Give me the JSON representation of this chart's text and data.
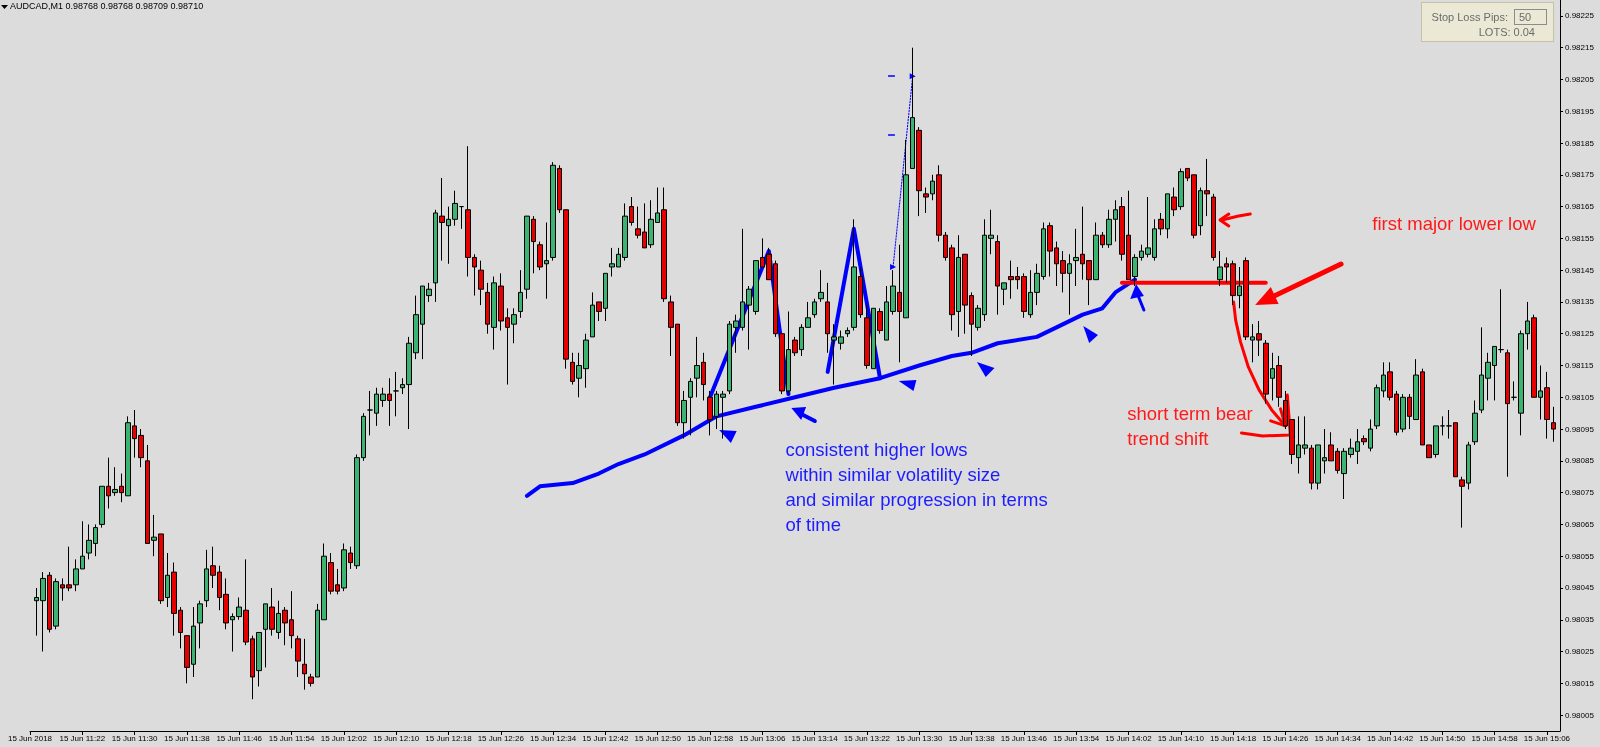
{
  "chart_data": {
    "type": "candlestick",
    "title": "AUDCAD,M1 0.98768 0.98768 0.98709 0.98710",
    "x": [
      "2018-06-15T11:15",
      "2018-06-15T11:16",
      "2018-06-15T11:17",
      "2018-06-15T11:18",
      "2018-06-15T11:19",
      "2018-06-15T11:20",
      "2018-06-15T11:21",
      "2018-06-15T11:22",
      "2018-06-15T11:23",
      "2018-06-15T11:24",
      "2018-06-15T11:25",
      "2018-06-15T11:26",
      "2018-06-15T11:27",
      "2018-06-15T11:28",
      "2018-06-15T11:29",
      "2018-06-15T11:30",
      "2018-06-15T11:31",
      "2018-06-15T11:32",
      "2018-06-15T11:33",
      "2018-06-15T11:34",
      "2018-06-15T11:35",
      "2018-06-15T11:36",
      "2018-06-15T11:37",
      "2018-06-15T11:38",
      "2018-06-15T11:39",
      "2018-06-15T11:40",
      "2018-06-15T11:41",
      "2018-06-15T11:42",
      "2018-06-15T11:43",
      "2018-06-15T11:44",
      "2018-06-15T11:45",
      "2018-06-15T11:46",
      "2018-06-15T11:47",
      "2018-06-15T11:48",
      "2018-06-15T11:49",
      "2018-06-15T11:50",
      "2018-06-15T11:51",
      "2018-06-15T11:52",
      "2018-06-15T11:53",
      "2018-06-15T11:54",
      "2018-06-15T11:55",
      "2018-06-15T11:56",
      "2018-06-15T11:57",
      "2018-06-15T11:58",
      "2018-06-15T11:59",
      "2018-06-15T12:00",
      "2018-06-15T12:01",
      "2018-06-15T12:02",
      "2018-06-15T12:03",
      "2018-06-15T12:04",
      "2018-06-15T12:05",
      "2018-06-15T12:06",
      "2018-06-15T12:07",
      "2018-06-15T12:08",
      "2018-06-15T12:09",
      "2018-06-15T12:10",
      "2018-06-15T12:11",
      "2018-06-15T12:12",
      "2018-06-15T12:13",
      "2018-06-15T12:14",
      "2018-06-15T12:15",
      "2018-06-15T12:16",
      "2018-06-15T12:17",
      "2018-06-15T12:18",
      "2018-06-15T12:19",
      "2018-06-15T12:20",
      "2018-06-15T12:21",
      "2018-06-15T12:22",
      "2018-06-15T12:23",
      "2018-06-15T12:24",
      "2018-06-15T12:25",
      "2018-06-15T12:26",
      "2018-06-15T12:27",
      "2018-06-15T12:28",
      "2018-06-15T12:29",
      "2018-06-15T12:30",
      "2018-06-15T12:31",
      "2018-06-15T12:32",
      "2018-06-15T12:33",
      "2018-06-15T12:34",
      "2018-06-15T12:35",
      "2018-06-15T12:36",
      "2018-06-15T12:37",
      "2018-06-15T12:38",
      "2018-06-15T12:39",
      "2018-06-15T12:40",
      "2018-06-15T12:41",
      "2018-06-15T12:42",
      "2018-06-15T12:43",
      "2018-06-15T12:44",
      "2018-06-15T12:45",
      "2018-06-15T12:46",
      "2018-06-15T12:47",
      "2018-06-15T12:48",
      "2018-06-15T12:49",
      "2018-06-15T12:50",
      "2018-06-15T12:51",
      "2018-06-15T12:52",
      "2018-06-15T12:53",
      "2018-06-15T12:54",
      "2018-06-15T12:55",
      "2018-06-15T12:56",
      "2018-06-15T12:57",
      "2018-06-15T12:58",
      "2018-06-15T12:59",
      "2018-06-15T13:00",
      "2018-06-15T13:01",
      "2018-06-15T13:02",
      "2018-06-15T13:03",
      "2018-06-15T13:04",
      "2018-06-15T13:05",
      "2018-06-15T13:06",
      "2018-06-15T13:07",
      "2018-06-15T13:08",
      "2018-06-15T13:09",
      "2018-06-15T13:10",
      "2018-06-15T13:11",
      "2018-06-15T13:12",
      "2018-06-15T13:13",
      "2018-06-15T13:14",
      "2018-06-15T13:15",
      "2018-06-15T13:16",
      "2018-06-15T13:17",
      "2018-06-15T13:18",
      "2018-06-15T13:19",
      "2018-06-15T13:20",
      "2018-06-15T13:21",
      "2018-06-15T13:22",
      "2018-06-15T13:23",
      "2018-06-15T13:24",
      "2018-06-15T13:25",
      "2018-06-15T13:26",
      "2018-06-15T13:27",
      "2018-06-15T13:28",
      "2018-06-15T13:29",
      "2018-06-15T13:30",
      "2018-06-15T13:31",
      "2018-06-15T13:32",
      "2018-06-15T13:33",
      "2018-06-15T13:34",
      "2018-06-15T13:35",
      "2018-06-15T13:36",
      "2018-06-15T13:37",
      "2018-06-15T13:38",
      "2018-06-15T13:39",
      "2018-06-15T13:40",
      "2018-06-15T13:41",
      "2018-06-15T13:42",
      "2018-06-15T13:43",
      "2018-06-15T13:44",
      "2018-06-15T13:45",
      "2018-06-15T13:46",
      "2018-06-15T13:47",
      "2018-06-15T13:48",
      "2018-06-15T13:49",
      "2018-06-15T13:50",
      "2018-06-15T13:51",
      "2018-06-15T13:52",
      "2018-06-15T13:53",
      "2018-06-15T13:54",
      "2018-06-15T13:55",
      "2018-06-15T13:56",
      "2018-06-15T13:57",
      "2018-06-15T13:58",
      "2018-06-15T13:59",
      "2018-06-15T14:00",
      "2018-06-15T14:01",
      "2018-06-15T14:02",
      "2018-06-15T14:03",
      "2018-06-15T14:04",
      "2018-06-15T14:05",
      "2018-06-15T14:06",
      "2018-06-15T14:07",
      "2018-06-15T14:08",
      "2018-06-15T14:09",
      "2018-06-15T14:10",
      "2018-06-15T14:11",
      "2018-06-15T14:12",
      "2018-06-15T14:13",
      "2018-06-15T14:14",
      "2018-06-15T14:15",
      "2018-06-15T14:16",
      "2018-06-15T14:17",
      "2018-06-15T14:18",
      "2018-06-15T14:19",
      "2018-06-15T14:20",
      "2018-06-15T14:21",
      "2018-06-15T14:22",
      "2018-06-15T14:23",
      "2018-06-15T14:24",
      "2018-06-15T14:25",
      "2018-06-15T14:26",
      "2018-06-15T14:27",
      "2018-06-15T14:28",
      "2018-06-15T14:29",
      "2018-06-15T14:30",
      "2018-06-15T14:31",
      "2018-06-15T14:32",
      "2018-06-15T14:33",
      "2018-06-15T14:34",
      "2018-06-15T14:35",
      "2018-06-15T14:36",
      "2018-06-15T14:37",
      "2018-06-15T14:38",
      "2018-06-15T14:39",
      "2018-06-15T14:40",
      "2018-06-15T14:41",
      "2018-06-15T14:42",
      "2018-06-15T14:43",
      "2018-06-15T14:44",
      "2018-06-15T14:45",
      "2018-06-15T14:46",
      "2018-06-15T14:47",
      "2018-06-15T14:48",
      "2018-06-15T14:49",
      "2018-06-15T14:50",
      "2018-06-15T14:51",
      "2018-06-15T14:52",
      "2018-06-15T14:53",
      "2018-06-15T14:54",
      "2018-06-15T14:55",
      "2018-06-15T14:56",
      "2018-06-15T14:57",
      "2018-06-15T14:58",
      "2018-06-15T14:59",
      "2018-06-15T15:00",
      "2018-06-15T15:01",
      "2018-06-15T15:02",
      "2018-06-15T15:03",
      "2018-06-15T15:04",
      "2018-06-15T15:05",
      "2018-06-15T15:06",
      "2018-06-15T15:07"
    ],
    "ohlc": [
      [
        0.98041,
        0.98045,
        0.9803,
        0.98042
      ],
      [
        0.98041,
        0.9805,
        0.98025,
        0.98048
      ],
      [
        0.98049,
        0.9805,
        0.98031,
        0.98032
      ],
      [
        0.98033,
        0.98048,
        0.98032,
        0.98047
      ],
      [
        0.98046,
        0.98048,
        0.98041,
        0.98045
      ],
      [
        0.98046,
        0.98058,
        0.98044,
        0.98045
      ],
      [
        0.98046,
        0.98054,
        0.98044,
        0.98051
      ],
      [
        0.98051,
        0.98066,
        0.98051,
        0.98055
      ],
      [
        0.98056,
        0.98065,
        0.98054,
        0.9806
      ],
      [
        0.98059,
        0.98065,
        0.98055,
        0.98064
      ],
      [
        0.98065,
        0.98077,
        0.98064,
        0.98077
      ],
      [
        0.98077,
        0.98086,
        0.9807,
        0.98074
      ],
      [
        0.98075,
        0.98083,
        0.98074,
        0.98076
      ],
      [
        0.98077,
        0.98081,
        0.98072,
        0.98075
      ],
      [
        0.98074,
        0.98099,
        0.98074,
        0.98097
      ],
      [
        0.98096,
        0.98101,
        0.98086,
        0.98092
      ],
      [
        0.98093,
        0.98095,
        0.98083,
        0.98086
      ],
      [
        0.98085,
        0.9809,
        0.98059,
        0.98059
      ],
      [
        0.9806,
        0.98068,
        0.98055,
        0.98061
      ],
      [
        0.98062,
        0.98062,
        0.9804,
        0.98041
      ],
      [
        0.98042,
        0.98056,
        0.98039,
        0.98049
      ],
      [
        0.9805,
        0.98053,
        0.9803,
        0.98037
      ],
      [
        0.98038,
        0.98039,
        0.98026,
        0.98031
      ],
      [
        0.9803,
        0.9803,
        0.98015,
        0.9802
      ],
      [
        0.98021,
        0.98039,
        0.98017,
        0.98033
      ],
      [
        0.98034,
        0.98041,
        0.98026,
        0.9804
      ],
      [
        0.98041,
        0.98057,
        0.98039,
        0.98051
      ],
      [
        0.98052,
        0.98058,
        0.98045,
        0.98049
      ],
      [
        0.9805,
        0.98052,
        0.98038,
        0.98042
      ],
      [
        0.98043,
        0.98048,
        0.98032,
        0.98034
      ],
      [
        0.98035,
        0.98037,
        0.98025,
        0.98036
      ],
      [
        0.98036,
        0.98042,
        0.98035,
        0.98039
      ],
      [
        0.98038,
        0.98054,
        0.98027,
        0.98028
      ],
      [
        0.98029,
        0.9803,
        0.9801,
        0.98017
      ],
      [
        0.98019,
        0.98031,
        0.98014,
        0.98031
      ],
      [
        0.98032,
        0.9804,
        0.9802,
        0.9804
      ],
      [
        0.98039,
        0.98045,
        0.9803,
        0.98032
      ],
      [
        0.98031,
        0.98041,
        0.98029,
        0.98037
      ],
      [
        0.98038,
        0.98039,
        0.98027,
        0.98034
      ],
      [
        0.98035,
        0.98044,
        0.98026,
        0.9803
      ],
      [
        0.98029,
        0.9803,
        0.98017,
        0.98022
      ],
      [
        0.98021,
        0.98029,
        0.98013,
        0.98018
      ],
      [
        0.98017,
        0.98018,
        0.98014,
        0.98015
      ],
      [
        0.98017,
        0.9804,
        0.98017,
        0.98038
      ],
      [
        0.98035,
        0.98059,
        0.98035,
        0.98055
      ],
      [
        0.98053,
        0.98056,
        0.98043,
        0.98044
      ],
      [
        0.98046,
        0.98051,
        0.98043,
        0.98044
      ],
      [
        0.98045,
        0.98059,
        0.98044,
        0.98057
      ],
      [
        0.98056,
        0.98058,
        0.98051,
        0.98053
      ],
      [
        0.98052,
        0.98087,
        0.98051,
        0.98086
      ],
      [
        0.98086,
        0.981,
        0.98085,
        0.98099
      ],
      [
        0.98101,
        0.98107,
        0.98093,
        0.98101
      ],
      [
        0.981,
        0.98108,
        0.98096,
        0.98106
      ],
      [
        0.98104,
        0.98108,
        0.98102,
        0.98106
      ],
      [
        0.98106,
        0.98111,
        0.98096,
        0.98104
      ],
      [
        0.98107,
        0.98113,
        0.98099,
        0.98107
      ],
      [
        0.98108,
        0.98111,
        0.98106,
        0.98109
      ],
      [
        0.98109,
        0.98124,
        0.98095,
        0.98122
      ],
      [
        0.98119,
        0.98137,
        0.98117,
        0.98131
      ],
      [
        0.98128,
        0.9814,
        0.98117,
        0.9814
      ],
      [
        0.98137,
        0.98141,
        0.98135,
        0.98139
      ],
      [
        0.98141,
        0.98164,
        0.98135,
        0.98163
      ],
      [
        0.98162,
        0.98174,
        0.98148,
        0.9816
      ],
      [
        0.98159,
        0.98165,
        0.98147,
        0.98161
      ],
      [
        0.98161,
        0.9817,
        0.98159,
        0.98166
      ],
      [
        0.98165,
        0.98165,
        0.98158,
        0.98165
      ],
      [
        0.98164,
        0.98184,
        0.98143,
        0.98149
      ],
      [
        0.98149,
        0.9815,
        0.98137,
        0.98146
      ],
      [
        0.98145,
        0.98148,
        0.98134,
        0.98139
      ],
      [
        0.98138,
        0.98141,
        0.98125,
        0.98128
      ],
      [
        0.98127,
        0.98143,
        0.9812,
        0.98141
      ],
      [
        0.9814,
        0.98144,
        0.98126,
        0.98129
      ],
      [
        0.9813,
        0.98133,
        0.98109,
        0.98127
      ],
      [
        0.98128,
        0.98133,
        0.98122,
        0.98131
      ],
      [
        0.98132,
        0.98145,
        0.9813,
        0.98138
      ],
      [
        0.98139,
        0.98162,
        0.98136,
        0.98162
      ],
      [
        0.98161,
        0.98162,
        0.98144,
        0.98154
      ],
      [
        0.98153,
        0.98154,
        0.98145,
        0.98146
      ],
      [
        0.98147,
        0.9816,
        0.98136,
        0.98148
      ],
      [
        0.98149,
        0.98179,
        0.98148,
        0.98178
      ],
      [
        0.98177,
        0.98178,
        0.98163,
        0.98164
      ],
      [
        0.98164,
        0.98164,
        0.98114,
        0.98117
      ],
      [
        0.98116,
        0.98119,
        0.98109,
        0.9811
      ],
      [
        0.98111,
        0.98119,
        0.98105,
        0.98115
      ],
      [
        0.98114,
        0.98125,
        0.98108,
        0.98123
      ],
      [
        0.98124,
        0.98138,
        0.98124,
        0.98134
      ],
      [
        0.98135,
        0.98135,
        0.98129,
        0.98132
      ],
      [
        0.98133,
        0.98144,
        0.98129,
        0.98144
      ],
      [
        0.98146,
        0.98152,
        0.98143,
        0.98147
      ],
      [
        0.98146,
        0.98152,
        0.98146,
        0.9815
      ],
      [
        0.98149,
        0.98166,
        0.98148,
        0.98162
      ],
      [
        0.98165,
        0.98168,
        0.98159,
        0.9816
      ],
      [
        0.98158,
        0.98165,
        0.98155,
        0.98156
      ],
      [
        0.98157,
        0.98166,
        0.98152,
        0.98152
      ],
      [
        0.98153,
        0.98167,
        0.98152,
        0.98161
      ],
      [
        0.9816,
        0.98171,
        0.9816,
        0.98163
      ],
      [
        0.98164,
        0.98171,
        0.98135,
        0.98136
      ],
      [
        0.98135,
        0.98137,
        0.98118,
        0.98127
      ],
      [
        0.98128,
        0.98128,
        0.98096,
        0.98097
      ],
      [
        0.98097,
        0.98107,
        0.98092,
        0.98104
      ],
      [
        0.98105,
        0.98111,
        0.98093,
        0.9811
      ],
      [
        0.98111,
        0.98124,
        0.98105,
        0.98115
      ],
      [
        0.98116,
        0.98119,
        0.98104,
        0.98109
      ],
      [
        0.98105,
        0.98107,
        0.98093,
        0.98098
      ],
      [
        0.98099,
        0.98107,
        0.98095,
        0.98106
      ],
      [
        0.98105,
        0.98107,
        0.98092,
        0.98106
      ],
      [
        0.98107,
        0.98129,
        0.98106,
        0.98128
      ],
      [
        0.98127,
        0.98131,
        0.98119,
        0.98129
      ],
      [
        0.98127,
        0.98158,
        0.98126,
        0.98135
      ],
      [
        0.98134,
        0.9814,
        0.9812,
        0.98139
      ],
      [
        0.98132,
        0.98148,
        0.98131,
        0.98148
      ],
      [
        0.98149,
        0.98155,
        0.98146,
        0.98146
      ],
      [
        0.9815,
        0.98152,
        0.98142,
        0.98142
      ],
      [
        0.98147,
        0.98148,
        0.98124,
        0.98125
      ],
      [
        0.98125,
        0.98125,
        0.98106,
        0.98107
      ],
      [
        0.98107,
        0.98132,
        0.98106,
        0.9812
      ],
      [
        0.98123,
        0.98124,
        0.98118,
        0.98119
      ],
      [
        0.9812,
        0.98128,
        0.98118,
        0.98127
      ],
      [
        0.98127,
        0.98135,
        0.98127,
        0.9813
      ],
      [
        0.98131,
        0.98136,
        0.9813,
        0.98135
      ],
      [
        0.98136,
        0.98145,
        0.98135,
        0.98138
      ],
      [
        0.98135,
        0.98141,
        0.98119,
        0.98125
      ],
      [
        0.98123,
        0.98128,
        0.98109,
        0.98124
      ],
      [
        0.98122,
        0.98126,
        0.9812,
        0.98124
      ],
      [
        0.98125,
        0.98127,
        0.98124,
        0.98126
      ],
      [
        0.98127,
        0.98161,
        0.98126,
        0.98146
      ],
      [
        0.98143,
        0.98146,
        0.9813,
        0.98131
      ],
      [
        0.9813,
        0.98134,
        0.98114,
        0.98115
      ],
      [
        0.98114,
        0.98133,
        0.98114,
        0.98133
      ],
      [
        0.98132,
        0.98133,
        0.98125,
        0.98126
      ],
      [
        0.98123,
        0.9814,
        0.98123,
        0.98135
      ],
      [
        0.98132,
        0.98145,
        0.98131,
        0.9814
      ],
      [
        0.98138,
        0.98153,
        0.98116,
        0.98132
      ],
      [
        0.9813,
        0.98186,
        0.9813,
        0.98175
      ],
      [
        0.98177,
        0.98215,
        0.98177,
        0.98193
      ],
      [
        0.98189,
        0.9819,
        0.98162,
        0.9817
      ],
      [
        0.98169,
        0.98171,
        0.98163,
        0.98168
      ],
      [
        0.98169,
        0.98175,
        0.98167,
        0.98173
      ],
      [
        0.98175,
        0.98178,
        0.98154,
        0.98156
      ],
      [
        0.98156,
        0.98157,
        0.98148,
        0.98149
      ],
      [
        0.98152,
        0.98153,
        0.98126,
        0.98131
      ],
      [
        0.98132,
        0.98156,
        0.98124,
        0.98149
      ],
      [
        0.9815,
        0.9815,
        0.98125,
        0.98134
      ],
      [
        0.98137,
        0.98138,
        0.98118,
        0.98128
      ],
      [
        0.98127,
        0.98134,
        0.98126,
        0.98133
      ],
      [
        0.98131,
        0.98161,
        0.98129,
        0.98156
      ],
      [
        0.98155,
        0.98164,
        0.9815,
        0.98156
      ],
      [
        0.98154,
        0.98156,
        0.98131,
        0.9814
      ],
      [
        0.98139,
        0.98141,
        0.98134,
        0.98141
      ],
      [
        0.98143,
        0.98148,
        0.98136,
        0.98142
      ],
      [
        0.98143,
        0.98146,
        0.98139,
        0.98142
      ],
      [
        0.98143,
        0.98144,
        0.9813,
        0.98132
      ],
      [
        0.98131,
        0.98145,
        0.9813,
        0.98138
      ],
      [
        0.98138,
        0.98147,
        0.98134,
        0.98144
      ],
      [
        0.98143,
        0.9816,
        0.98142,
        0.98158
      ],
      [
        0.98159,
        0.9816,
        0.98143,
        0.98151
      ],
      [
        0.98152,
        0.98154,
        0.9814,
        0.98147
      ],
      [
        0.98148,
        0.98151,
        0.98138,
        0.98144
      ],
      [
        0.98144,
        0.9815,
        0.98131,
        0.98147
      ],
      [
        0.98148,
        0.98158,
        0.9814,
        0.98149
      ],
      [
        0.9815,
        0.98165,
        0.98142,
        0.98147
      ],
      [
        0.98148,
        0.98148,
        0.98134,
        0.98142
      ],
      [
        0.98142,
        0.9816,
        0.98142,
        0.98156
      ],
      [
        0.98156,
        0.98157,
        0.98152,
        0.98153
      ],
      [
        0.98153,
        0.98164,
        0.98152,
        0.98161
      ],
      [
        0.98161,
        0.98167,
        0.98154,
        0.98164
      ],
      [
        0.98165,
        0.98168,
        0.98148,
        0.9815
      ],
      [
        0.98156,
        0.9817,
        0.98142,
        0.98142
      ],
      [
        0.98143,
        0.9815,
        0.9814,
        0.98149
      ],
      [
        0.98149,
        0.98153,
        0.98148,
        0.98151
      ],
      [
        0.9815,
        0.98168,
        0.98149,
        0.98152
      ],
      [
        0.98149,
        0.98161,
        0.98148,
        0.98158
      ],
      [
        0.98161,
        0.98163,
        0.98156,
        0.98158
      ],
      [
        0.98158,
        0.98169,
        0.98155,
        0.98169
      ],
      [
        0.98168,
        0.98171,
        0.98162,
        0.98164
      ],
      [
        0.98165,
        0.98177,
        0.98164,
        0.98176
      ],
      [
        0.98177,
        0.98177,
        0.98173,
        0.98174
      ],
      [
        0.98175,
        0.98175,
        0.98155,
        0.98156
      ],
      [
        0.98159,
        0.98171,
        0.98156,
        0.9817
      ],
      [
        0.9817,
        0.9818,
        0.98162,
        0.98169
      ],
      [
        0.98168,
        0.98169,
        0.98148,
        0.98149
      ],
      [
        0.98142,
        0.98151,
        0.9814,
        0.98146
      ],
      [
        0.98147,
        0.98149,
        0.98141,
        0.98146
      ],
      [
        0.98147,
        0.98148,
        0.98134,
        0.98137
      ],
      [
        0.98137,
        0.98146,
        0.98133,
        0.9814
      ],
      [
        0.98148,
        0.98149,
        0.98123,
        0.98124
      ],
      [
        0.98123,
        0.98128,
        0.98116,
        0.98124
      ],
      [
        0.98125,
        0.98129,
        0.98118,
        0.98123
      ],
      [
        0.98122,
        0.98123,
        0.98103,
        0.98106
      ],
      [
        0.98111,
        0.98119,
        0.98104,
        0.98114
      ],
      [
        0.98115,
        0.98118,
        0.98102,
        0.98105
      ],
      [
        0.98104,
        0.98107,
        0.98095,
        0.98096
      ],
      [
        0.98098,
        0.98098,
        0.98084,
        0.98087
      ],
      [
        0.98086,
        0.98099,
        0.98081,
        0.9809
      ],
      [
        0.98089,
        0.98099,
        0.98087,
        0.9809
      ],
      [
        0.98089,
        0.9809,
        0.98076,
        0.98078
      ],
      [
        0.98078,
        0.9809,
        0.98076,
        0.9809
      ],
      [
        0.98085,
        0.98095,
        0.98081,
        0.98086
      ],
      [
        0.9809,
        0.98094,
        0.98085,
        0.98085
      ],
      [
        0.98088,
        0.98089,
        0.98081,
        0.98082
      ],
      [
        0.98081,
        0.98089,
        0.98073,
        0.98088
      ],
      [
        0.98087,
        0.98092,
        0.98086,
        0.98089
      ],
      [
        0.98088,
        0.98095,
        0.98084,
        0.98091
      ],
      [
        0.98092,
        0.98093,
        0.9809,
        0.98091
      ],
      [
        0.98089,
        0.98098,
        0.98088,
        0.98095
      ],
      [
        0.98096,
        0.98109,
        0.98095,
        0.98108
      ],
      [
        0.98107,
        0.98116,
        0.98105,
        0.98112
      ],
      [
        0.98113,
        0.98116,
        0.98104,
        0.98105
      ],
      [
        0.98106,
        0.98107,
        0.98093,
        0.98094
      ],
      [
        0.98095,
        0.98106,
        0.98094,
        0.98105
      ],
      [
        0.98105,
        0.98106,
        0.98095,
        0.98099
      ],
      [
        0.98098,
        0.98117,
        0.98098,
        0.98112
      ],
      [
        0.98113,
        0.98114,
        0.9809,
        0.9809
      ],
      [
        0.9809,
        0.9809,
        0.98086,
        0.98086
      ],
      [
        0.98087,
        0.98096,
        0.98086,
        0.98096
      ],
      [
        0.98096,
        0.98099,
        0.98093,
        0.98096
      ],
      [
        0.98096,
        0.98101,
        0.98092,
        0.98096
      ],
      [
        0.98097,
        0.98097,
        0.9808,
        0.9808
      ],
      [
        0.98079,
        0.9808,
        0.98064,
        0.98077
      ],
      [
        0.98078,
        0.98091,
        0.98076,
        0.9809
      ],
      [
        0.98091,
        0.98104,
        0.9809,
        0.981
      ],
      [
        0.98101,
        0.98127,
        0.981,
        0.98112
      ],
      [
        0.98111,
        0.98119,
        0.98104,
        0.98116
      ],
      [
        0.98115,
        0.98121,
        0.98104,
        0.98121
      ],
      [
        0.9812,
        0.98139,
        0.98119,
        0.9812
      ],
      [
        0.98119,
        0.9812,
        0.9808,
        0.98103
      ],
      [
        0.98105,
        0.9811,
        0.98104,
        0.98105
      ],
      [
        0.981,
        0.98126,
        0.98093,
        0.98125
      ],
      [
        0.98125,
        0.98135,
        0.9812,
        0.98129
      ],
      [
        0.9813,
        0.98131,
        0.98105,
        0.98105
      ],
      [
        0.98105,
        0.98115,
        0.98098,
        0.98107
      ],
      [
        0.98108,
        0.98113,
        0.98092,
        0.98098
      ],
      [
        0.98097,
        0.98102,
        0.98091,
        0.98095
      ]
    ],
    "colors": [
      "#3cb371",
      "#3cb371",
      "#e60000",
      "#3cb371",
      "#e60000",
      "#e60000",
      "#3cb371",
      "#3cb371",
      "#3cb371",
      "#3cb371",
      "#3cb371",
      "#e60000",
      "#3cb371",
      "#e60000",
      "#3cb371",
      "#e60000",
      "#e60000",
      "#e60000",
      "#3cb371",
      "#e60000",
      "#3cb371",
      "#e60000",
      "#e60000",
      "#e60000",
      "#3cb371",
      "#3cb371",
      "#3cb371",
      "#e60000",
      "#e60000",
      "#e60000",
      "#3cb371",
      "#3cb371",
      "#e60000",
      "#e60000",
      "#3cb371",
      "#3cb371",
      "#e60000",
      "#3cb371",
      "#e60000",
      "#e60000",
      "#e60000",
      "#e60000",
      "#e60000",
      "#3cb371",
      "#3cb371",
      "#e60000",
      "#e60000",
      "#3cb371",
      "#e60000",
      "#3cb371",
      "#3cb371",
      "#000000",
      "#3cb371",
      "#3cb371",
      "#e60000",
      "#000000",
      "#3cb371",
      "#3cb371",
      "#3cb371",
      "#3cb371",
      "#3cb371",
      "#3cb371",
      "#e60000",
      "#3cb371",
      "#3cb371",
      "#000000",
      "#e60000",
      "#e60000",
      "#e60000",
      "#e60000",
      "#3cb371",
      "#e60000",
      "#e60000",
      "#3cb371",
      "#3cb371",
      "#3cb371",
      "#e60000",
      "#e60000",
      "#3cb371",
      "#3cb371",
      "#e60000",
      "#e60000",
      "#e60000",
      "#3cb371",
      "#3cb371",
      "#3cb371",
      "#e60000",
      "#3cb371",
      "#3cb371",
      "#3cb371",
      "#3cb371",
      "#e60000",
      "#e60000",
      "#e60000",
      "#3cb371",
      "#3cb371",
      "#e60000",
      "#e60000",
      "#e60000",
      "#3cb371",
      "#3cb371",
      "#3cb371",
      "#e60000",
      "#e60000",
      "#3cb371",
      "#3cb371",
      "#3cb371",
      "#3cb371",
      "#3cb371",
      "#3cb371",
      "#3cb371",
      "#e60000",
      "#e60000",
      "#e60000",
      "#e60000",
      "#3cb371",
      "#e60000",
      "#3cb371",
      "#3cb371",
      "#3cb371",
      "#3cb371",
      "#e60000",
      "#3cb371",
      "#3cb371",
      "#3cb371",
      "#3cb371",
      "#e60000",
      "#e60000",
      "#3cb371",
      "#e60000",
      "#3cb371",
      "#3cb371",
      "#e60000",
      "#3cb371",
      "#3cb371",
      "#e60000",
      "#e60000",
      "#3cb371",
      "#e60000",
      "#e60000",
      "#e60000",
      "#3cb371",
      "#e60000",
      "#e60000",
      "#3cb371",
      "#3cb371",
      "#3cb371",
      "#e60000",
      "#3cb371",
      "#e60000",
      "#e60000",
      "#e60000",
      "#3cb371",
      "#3cb371",
      "#3cb371",
      "#e60000",
      "#e60000",
      "#e60000",
      "#3cb371",
      "#3cb371",
      "#e60000",
      "#e60000",
      "#3cb371",
      "#e60000",
      "#3cb371",
      "#3cb371",
      "#e60000",
      "#e60000",
      "#3cb371",
      "#3cb371",
      "#3cb371",
      "#3cb371",
      "#e60000",
      "#3cb371",
      "#e60000",
      "#3cb371",
      "#e60000",
      "#e60000",
      "#3cb371",
      "#e60000",
      "#e60000",
      "#3cb371",
      "#e60000",
      "#e60000",
      "#3cb371",
      "#e60000",
      "#3cb371",
      "#e60000",
      "#e60000",
      "#3cb371",
      "#e60000",
      "#e60000",
      "#e60000",
      "#3cb371",
      "#3cb371",
      "#e60000",
      "#3cb371",
      "#3cb371",
      "#e60000",
      "#e60000",
      "#3cb371",
      "#3cb371",
      "#3cb371",
      "#e60000",
      "#3cb371",
      "#3cb371",
      "#3cb371",
      "#e60000",
      "#e60000",
      "#3cb371",
      "#e60000",
      "#3cb371",
      "#e60000",
      "#e60000",
      "#3cb371",
      "#000000",
      "#000000",
      "#e60000",
      "#e60000",
      "#3cb371",
      "#3cb371",
      "#3cb371",
      "#3cb371",
      "#3cb371",
      "#000000",
      "#e60000",
      "#000000",
      "#3cb371",
      "#3cb371",
      "#e60000",
      "#3cb371",
      "#e60000",
      "#e60000"
    ],
    "series": [
      {
        "type": "line",
        "color": "#0000ff",
        "x": [
          "2018-06-15T12:30",
          "2018-06-15T12:32",
          "2018-06-15T12:37",
          "2018-06-15T12:41",
          "2018-06-15T12:44",
          "2018-06-15T12:48",
          "2018-06-15T12:54",
          "2018-06-15T12:59",
          "2018-06-15T13:05",
          "2018-06-15T13:11",
          "2018-06-15T13:17",
          "2018-06-15T13:24",
          "2018-06-15T13:30",
          "2018-06-15T13:35",
          "2018-06-15T13:38",
          "2018-06-15T13:42",
          "2018-06-15T13:48",
          "2018-06-15T13:51",
          "2018-06-15T13:55",
          "2018-06-15T13:58",
          "2018-06-15T14:00",
          "2018-06-15T14:03"
        ],
        "values": [
          0.98074,
          0.98077,
          0.98078,
          0.98081,
          0.98084,
          0.98087,
          0.98093,
          0.98099,
          0.98102,
          0.98105,
          0.98108,
          0.98111,
          0.98115,
          0.98118,
          0.98119,
          0.98122,
          0.98124,
          0.98127,
          0.98131,
          0.98133,
          0.98138,
          0.98142
        ]
      },
      {
        "type": "line",
        "color": "#0000ff",
        "x": [
          "2018-06-15T12:58",
          "2018-06-15T13:07",
          "2018-06-15T13:10"
        ],
        "values": [
          0.98105,
          0.98151,
          0.98106
        ]
      },
      {
        "type": "line",
        "color": "#0000ff",
        "x": [
          "2018-06-15T13:16",
          "2018-06-15T13:20",
          "2018-06-15T13:24"
        ],
        "values": [
          0.98113,
          0.98158,
          0.98111
        ]
      },
      {
        "type": "line",
        "color": "#ff0000",
        "x": [
          "2018-06-15T14:01",
          "2018-06-15T14:23"
        ],
        "values": [
          0.98141,
          0.98141
        ]
      },
      {
        "type": "line",
        "color": "#0000ff",
        "line_style": "dotted",
        "marker": "triangle",
        "x": [
          "2018-06-15T13:26",
          "2018-06-15T13:29"
        ],
        "values": [
          0.98146,
          0.98206
        ]
      }
    ],
    "xlim": [
      "2018-06-15T11:14",
      "2018-06-15T15:08"
    ],
    "xticks": [
      {
        "value": "2018-06-15T11:14",
        "label": "15 Jun 2018"
      },
      {
        "value": "2018-06-15T11:22",
        "label": "15 Jun 11:22"
      },
      {
        "value": "2018-06-15T11:30",
        "label": "15 Jun 11:30"
      },
      {
        "value": "2018-06-15T11:38",
        "label": "15 Jun 11:38"
      },
      {
        "value": "2018-06-15T11:46",
        "label": "15 Jun 11:46"
      },
      {
        "value": "2018-06-15T11:54",
        "label": "15 Jun 11:54"
      },
      {
        "value": "2018-06-15T12:02",
        "label": "15 Jun 12:02"
      },
      {
        "value": "2018-06-15T12:10",
        "label": "15 Jun 12:10"
      },
      {
        "value": "2018-06-15T12:18",
        "label": "15 Jun 12:18"
      },
      {
        "value": "2018-06-15T12:26",
        "label": "15 Jun 12:26"
      },
      {
        "value": "2018-06-15T12:34",
        "label": "15 Jun 12:34"
      },
      {
        "value": "2018-06-15T12:42",
        "label": "15 Jun 12:42"
      },
      {
        "value": "2018-06-15T12:50",
        "label": "15 Jun 12:50"
      },
      {
        "value": "2018-06-15T12:58",
        "label": "15 Jun 12:58"
      },
      {
        "value": "2018-06-15T13:06",
        "label": "15 Jun 13:06"
      },
      {
        "value": "2018-06-15T13:14",
        "label": "15 Jun 13:14"
      },
      {
        "value": "2018-06-15T13:22",
        "label": "15 Jun 13:22"
      },
      {
        "value": "2018-06-15T13:30",
        "label": "15 Jun 13:30"
      },
      {
        "value": "2018-06-15T13:38",
        "label": "15 Jun 13:38"
      },
      {
        "value": "2018-06-15T13:46",
        "label": "15 Jun 13:46"
      },
      {
        "value": "2018-06-15T13:54",
        "label": "15 Jun 13:54"
      },
      {
        "value": "2018-06-15T14:02",
        "label": "15 Jun 14:02"
      },
      {
        "value": "2018-06-15T14:10",
        "label": "15 Jun 14:10"
      },
      {
        "value": "2018-06-15T14:18",
        "label": "15 Jun 14:18"
      },
      {
        "value": "2018-06-15T14:26",
        "label": "15 Jun 14:26"
      },
      {
        "value": "2018-06-15T14:34",
        "label": "15 Jun 14:34"
      },
      {
        "value": "2018-06-15T14:42",
        "label": "15 Jun 14:42"
      },
      {
        "value": "2018-06-15T14:50",
        "label": "15 Jun 14:50"
      },
      {
        "value": "2018-06-15T14:58",
        "label": "15 Jun 14:58"
      },
      {
        "value": "2018-06-15T15:06",
        "label": "15 Jun 15:06"
      }
    ],
    "ylim": [
      0.98,
      0.9823
    ],
    "yticks": [
      0.98005,
      0.98015,
      0.98025,
      0.98035,
      0.98045,
      0.98055,
      0.98065,
      0.98075,
      0.98085,
      0.98095,
      0.98105,
      0.98115,
      0.98125,
      0.98135,
      0.98145,
      0.98155,
      0.98165,
      0.98175,
      0.98185,
      0.98195,
      0.98205,
      0.98215,
      0.98225
    ],
    "marker": "none",
    "annotations": [
      "consistent higher lows\nwithin similar volatility size\nand similar progression in terms\nof time",
      {
        "text": "short term bear\ntrend shift",
        "x": "2018-06-15T14:26",
        "y": 0.98096
      },
      "first major lower low",
      "Stop Loss Pips:",
      "50",
      "LOTS: 0.04"
    ]
  }
}
